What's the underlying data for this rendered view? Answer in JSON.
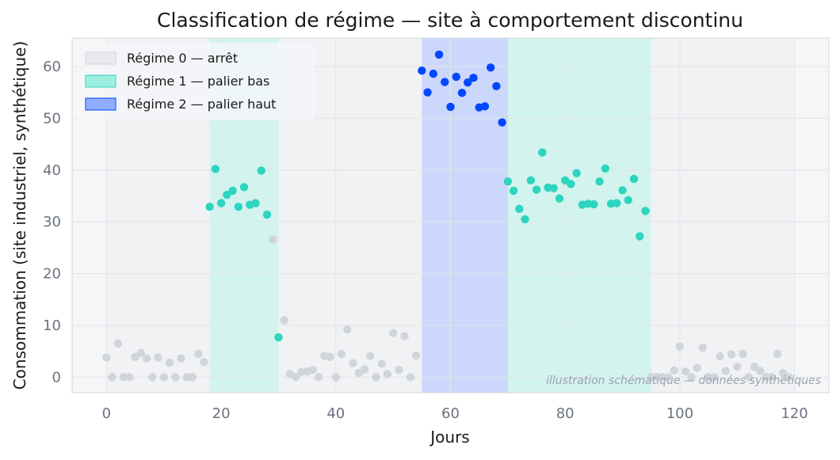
{
  "chart_data": {
    "type": "scatter",
    "title": "Classification de régime — site à comportement discontinu",
    "xlabel": "Jours",
    "ylabel": "Consommation (site industriel, synthétique)",
    "xlim": [
      -6,
      126
    ],
    "ylim": [
      -3,
      65.5
    ],
    "xticks": [
      0,
      20,
      40,
      60,
      80,
      100,
      120
    ],
    "yticks": [
      0,
      10,
      20,
      30,
      40,
      50,
      60
    ],
    "grid": true,
    "legend_position": "top-left",
    "annotation": "illustration schématique — données synthétiques",
    "regimes": [
      {
        "name": "Régime 0 — arrêt",
        "fill": "#e5e7eb",
        "marker": "#d1d5db"
      },
      {
        "name": "Régime 1 — palier bas",
        "fill": "#99eedd",
        "marker": "#2dd4bf"
      },
      {
        "name": "Régime 2 — palier haut",
        "fill": "#8aa8ff",
        "marker": "#0047ff"
      }
    ],
    "bands": [
      {
        "regime": 0,
        "x0": 0,
        "x1": 18
      },
      {
        "regime": 1,
        "x0": 18,
        "x1": 30
      },
      {
        "regime": 0,
        "x0": 30,
        "x1": 55
      },
      {
        "regime": 2,
        "x0": 55,
        "x1": 70
      },
      {
        "regime": 1,
        "x0": 70,
        "x1": 95
      },
      {
        "regime": 0,
        "x0": 95,
        "x1": 120
      }
    ],
    "series": [
      {
        "regime": 0,
        "x": [
          0,
          1,
          2,
          3,
          4,
          5,
          6,
          7,
          8,
          9,
          10,
          11,
          12,
          13,
          14,
          15,
          16,
          17,
          29,
          31,
          32,
          33,
          34,
          35,
          36,
          37,
          38,
          39,
          40,
          41,
          42,
          43,
          44,
          45,
          46,
          47,
          48,
          49,
          50,
          51,
          52,
          53,
          54,
          95,
          96,
          97,
          98,
          99,
          100,
          101,
          102,
          103,
          104,
          105,
          106,
          107,
          108,
          109,
          110,
          111,
          112,
          113,
          114,
          115,
          116,
          117,
          118,
          119
        ],
        "y": [
          3.8,
          0,
          6.5,
          0,
          0,
          3.9,
          4.7,
          3.6,
          0,
          3.8,
          0,
          2.8,
          0,
          3.6,
          0,
          0,
          4.5,
          2.9,
          26.6,
          11.0,
          0.6,
          0,
          1.0,
          1.1,
          1.4,
          0,
          4.1,
          3.9,
          0,
          4.5,
          9.2,
          2.7,
          0.8,
          1.5,
          4.1,
          0,
          2.6,
          0.6,
          8.5,
          1.4,
          7.9,
          0,
          4.2,
          0,
          0,
          0,
          0,
          1.3,
          5.9,
          1.1,
          0,
          1.8,
          5.7,
          0,
          0,
          4.0,
          1.2,
          4.4,
          2.0,
          4.5,
          0,
          2.0,
          1.2,
          0,
          0,
          4.5,
          0.8,
          0
        ]
      },
      {
        "regime": 1,
        "x": [
          18,
          19,
          20,
          21,
          22,
          23,
          24,
          25,
          26,
          27,
          28,
          30,
          70,
          71,
          72,
          73,
          74,
          75,
          76,
          77,
          78,
          79,
          80,
          81,
          82,
          83,
          84,
          85,
          86,
          87,
          88,
          89,
          90,
          91,
          92,
          93,
          94
        ],
        "y": [
          32.9,
          40.2,
          33.6,
          35.2,
          36.0,
          32.9,
          36.7,
          33.3,
          33.6,
          39.9,
          31.4,
          7.7,
          37.8,
          36.0,
          32.5,
          30.5,
          38.0,
          36.2,
          43.4,
          36.6,
          36.5,
          34.5,
          38.0,
          37.3,
          39.4,
          33.3,
          33.5,
          33.4,
          37.8,
          40.3,
          33.5,
          33.6,
          36.1,
          34.2,
          38.3,
          27.2,
          32.1
        ]
      },
      {
        "regime": 2,
        "x": [
          55,
          56,
          57,
          58,
          59,
          60,
          61,
          62,
          63,
          64,
          65,
          66,
          67,
          68,
          69
        ],
        "y": [
          59.2,
          55.0,
          58.6,
          62.3,
          57.0,
          52.2,
          58.0,
          54.9,
          56.9,
          57.8,
          52.1,
          52.3,
          59.8,
          56.2,
          49.2
        ]
      }
    ]
  }
}
